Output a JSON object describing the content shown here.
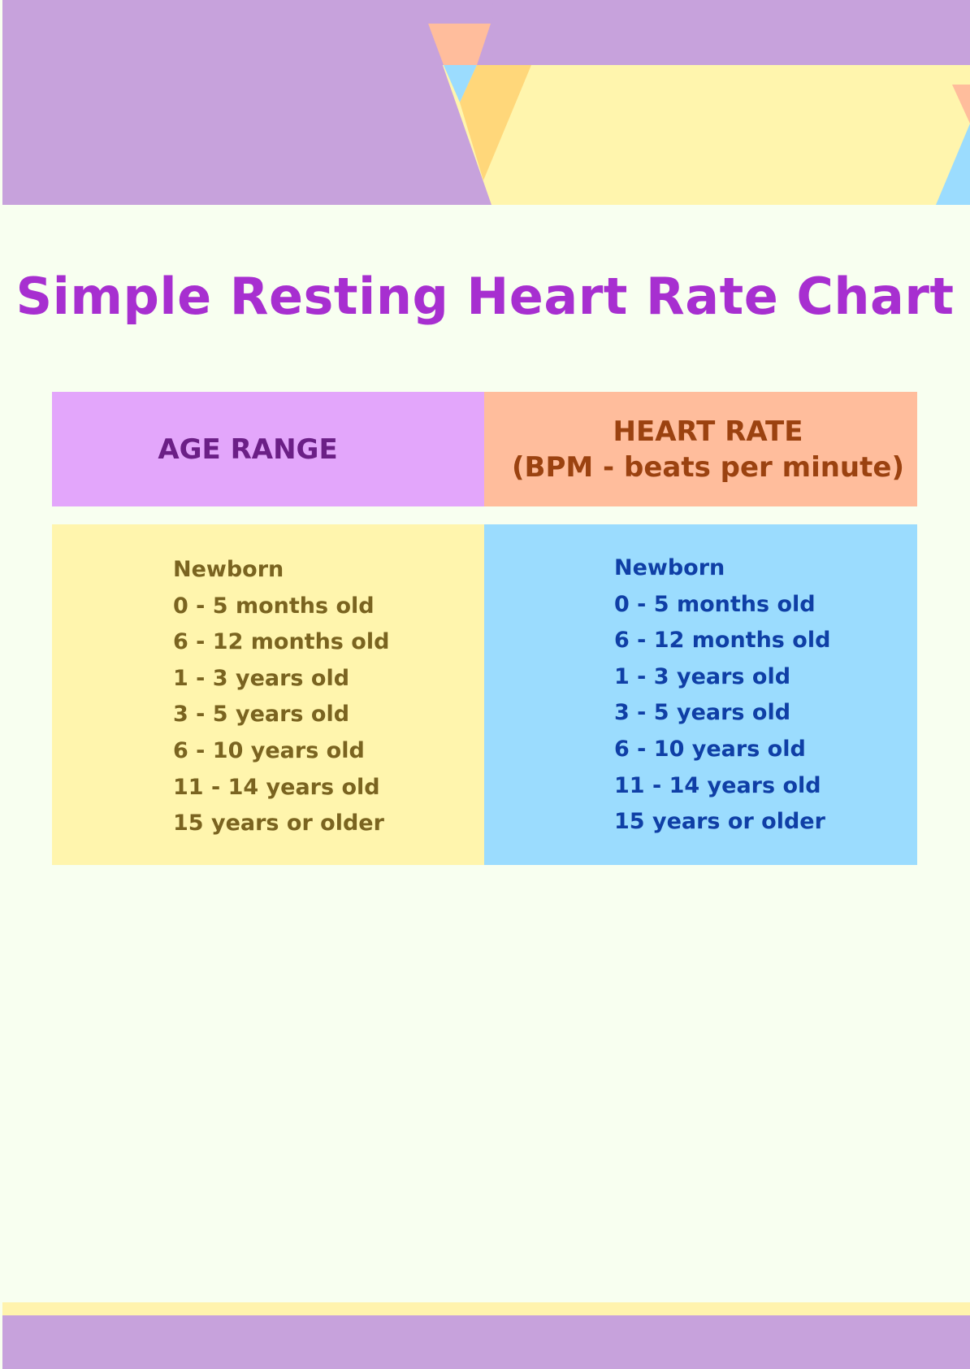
{
  "title": "Simple Resting Heart Rate Chart",
  "table": {
    "headers": {
      "age_range": "AGE RANGE",
      "heart_rate_line1": "HEART RATE",
      "heart_rate_line2": "(BPM - beats per minute)"
    },
    "age_column": [
      "Newborn",
      "0 - 5 months old",
      "6 - 12 months old",
      "1 - 3 years old",
      "3 - 5 years old",
      "6 - 10 years old",
      "11 - 14 years old",
      "15 years or older"
    ],
    "rate_column": [
      "Newborn",
      "0 - 5 months old",
      "6 - 12 months old",
      "1 - 3 years old",
      "3 - 5 years old",
      "6 - 10 years old",
      "11 - 14 years old",
      "15 years or older"
    ]
  },
  "colors": {
    "background": "#f8fff0",
    "title": "#a72fd0",
    "banner_purple": "#c7a2dc",
    "banner_yellow": "#fff5ad",
    "banner_peach": "#ffbd9c",
    "banner_blue": "#9bdcfe",
    "banner_orange": "#ffd77a",
    "age_header_bg": "#e3a6fb",
    "rate_header_bg": "#ffbd9c",
    "age_body_bg": "#fff5ad",
    "rate_body_bg": "#9bdcfe"
  }
}
